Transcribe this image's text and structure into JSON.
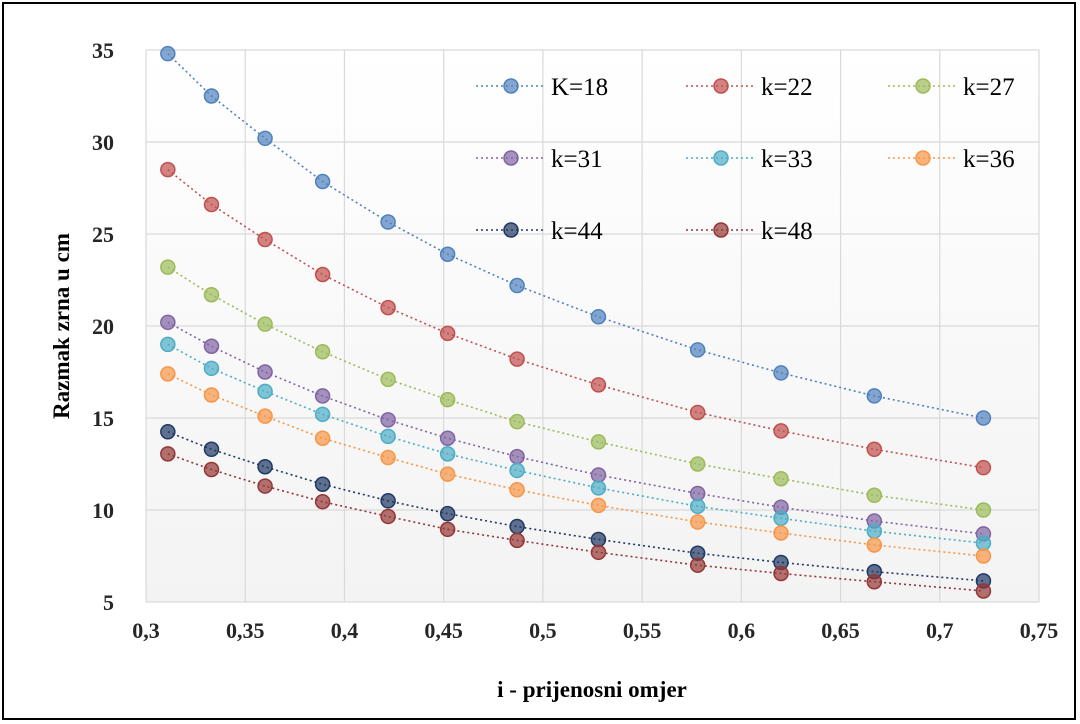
{
  "chart_data": {
    "type": "line",
    "title": "",
    "xlabel": "i - prijenosni omjer",
    "ylabel": "Razmak zrna u cm",
    "xlim": [
      0.3,
      0.75
    ],
    "ylim": [
      5,
      35
    ],
    "x_ticks": [
      "0,3",
      "0,35",
      "0,4",
      "0,45",
      "0,5",
      "0,55",
      "0,6",
      "0,65",
      "0,7",
      "0,75"
    ],
    "y_ticks": [
      "5",
      "10",
      "15",
      "20",
      "25",
      "30",
      "35"
    ],
    "grid": true,
    "legend_position": "top-right (inside plot)",
    "x": [
      0.311,
      0.333,
      0.36,
      0.389,
      0.422,
      0.452,
      0.487,
      0.528,
      0.578,
      0.62,
      0.667,
      0.722
    ],
    "series": [
      {
        "name": "K=18",
        "color": "#4f81bd",
        "values": [
          34.8,
          32.5,
          30.2,
          27.85,
          25.65,
          23.9,
          22.2,
          20.5,
          18.7,
          17.45,
          16.2,
          15.0
        ]
      },
      {
        "name": "k=22",
        "color": "#c0504d",
        "values": [
          28.5,
          26.6,
          24.7,
          22.8,
          21.0,
          19.6,
          18.2,
          16.8,
          15.3,
          14.3,
          13.3,
          12.3
        ]
      },
      {
        "name": "k=27",
        "color": "#9bbb59",
        "values": [
          23.2,
          21.7,
          20.1,
          18.6,
          17.1,
          16.0,
          14.8,
          13.7,
          12.5,
          11.7,
          10.8,
          10.0
        ]
      },
      {
        "name": "k=31",
        "color": "#8064a2",
        "values": [
          20.2,
          18.9,
          17.5,
          16.2,
          14.9,
          13.9,
          12.9,
          11.9,
          10.9,
          10.15,
          9.4,
          8.7
        ]
      },
      {
        "name": "k=33",
        "color": "#4bacc6",
        "values": [
          19.0,
          17.7,
          16.45,
          15.2,
          14.0,
          13.05,
          12.15,
          11.2,
          10.2,
          9.55,
          8.85,
          8.2
        ]
      },
      {
        "name": "k=36",
        "color": "#f79646",
        "values": [
          17.4,
          16.25,
          15.1,
          13.9,
          12.85,
          11.95,
          11.1,
          10.25,
          9.35,
          8.75,
          8.1,
          7.5
        ]
      },
      {
        "name": "k=44",
        "color": "#1f3864",
        "values": [
          14.25,
          13.3,
          12.35,
          11.4,
          10.5,
          9.8,
          9.1,
          8.4,
          7.65,
          7.15,
          6.65,
          6.15
        ]
      },
      {
        "name": "k=48",
        "color": "#943634",
        "values": [
          13.05,
          12.2,
          11.3,
          10.45,
          9.65,
          8.95,
          8.35,
          7.7,
          7.0,
          6.55,
          6.1,
          5.6
        ]
      }
    ]
  }
}
